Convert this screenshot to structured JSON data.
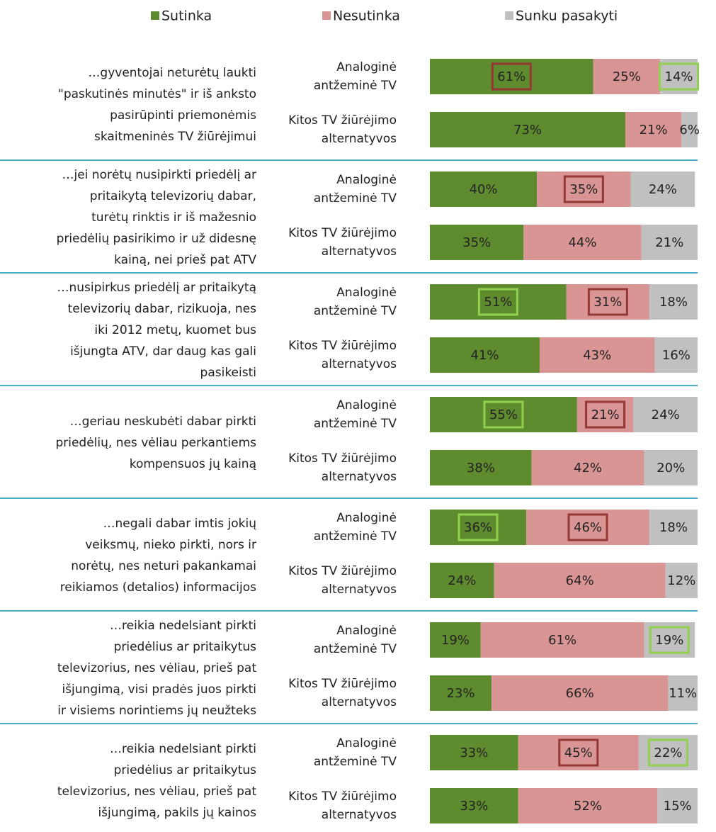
{
  "chart_data": {
    "type": "stacked-bar-horizontal",
    "groups": [
      [
        "…gyventojai neturėtų laukti",
        "\"paskutinės minutės\" ir iš anksto",
        "pasirūpinti priemonėmis",
        "skaitmeninės TV žiūrėjimui"
      ],
      [
        "…jei norėtų nusipirkti priedėlį ar",
        "pritaikytą televizorių dabar,",
        "turėtų rinktis ir iš mažesnio",
        "priedėlių pasirikimo ir už didesnę",
        "kainą, nei prieš pat ATV"
      ],
      [
        "…nusipirkus priedėlį ar pritaikytą",
        "televizorių dabar, rizikuoja, nes",
        "iki 2012 metų, kuomet bus",
        "išjungta ATV, dar daug kas gali",
        "pasikeisti"
      ],
      [
        "…geriau neskubėti dabar pirkti",
        "priedėlių, nes vėliau perkantiems",
        "kompensuos jų kainą"
      ],
      [
        "…negali dabar imtis jokių",
        "veiksmų, nieko pirkti, nors ir",
        "norėtų, nes neturi pakankamai",
        "reikiamos (detalios) informacijos"
      ],
      [
        "…reikia nedelsiant pirkti",
        "priedėlius ar pritaikytus",
        "televizorius, nes vėliau, prieš pat",
        "išjungimą, visi pradės juos pirkti",
        "ir visiems norintiems jų neužteks"
      ],
      [
        "…reikia nedelsiant pirkti",
        "priedėlius ar pritaikytus",
        "televizorius, nes vėliau, prieš pat",
        "išjungimą, pakils jų kainos"
      ]
    ],
    "categories": [
      [
        "Analoginė",
        "antžeminė TV"
      ],
      [
        "Kitos TV žiūrėjimo",
        "alternatyvos"
      ],
      [
        "Analoginė",
        "antžeminė TV"
      ],
      [
        "Kitos TV žiūrėjimo",
        "alternatyvos"
      ],
      [
        "Analoginė",
        "antžeminė TV"
      ],
      [
        "Kitos TV žiūrėjimo",
        "alternatyvos"
      ],
      [
        "Analoginė",
        "antžeminė TV"
      ],
      [
        "Kitos TV žiūrėjimo",
        "alternatyvos"
      ],
      [
        "Analoginė",
        "antžeminė TV"
      ],
      [
        "Kitos TV žiūrėjimo",
        "alternatyvos"
      ],
      [
        "Analoginė",
        "antžeminė TV"
      ],
      [
        "Kitos TV žiūrėjimo",
        "alternatyvos"
      ],
      [
        "Analoginė",
        "antžeminė TV"
      ],
      [
        "Kitos TV žiūrėjimo",
        "alternatyvos"
      ]
    ],
    "xlim": [
      0,
      100
    ],
    "series": [
      {
        "name": "Sutinka",
        "color": "#5f8b2f",
        "values": [
          61,
          73,
          40,
          35,
          51,
          41,
          55,
          38,
          36,
          24,
          19,
          23,
          33,
          33
        ],
        "value_labels": [
          "61%",
          "73%",
          "40%",
          "35%",
          "51%",
          "41%",
          "55%",
          "38%",
          "36%",
          "24%",
          "19%",
          "23%",
          "33%",
          "33%"
        ],
        "highlight": [
          "#953735",
          null,
          null,
          null,
          "#92d050",
          null,
          "#92d050",
          null,
          "#92d050",
          null,
          null,
          null,
          null,
          null
        ]
      },
      {
        "name": "Nesutinka",
        "color": "#d99594",
        "values": [
          25,
          21,
          35,
          44,
          31,
          43,
          21,
          42,
          46,
          64,
          61,
          66,
          45,
          52
        ],
        "value_labels": [
          "25%",
          "21%",
          "35%",
          "44%",
          "31%",
          "43%",
          "21%",
          "42%",
          "46%",
          "64%",
          "61%",
          "66%",
          "45%",
          "52%"
        ],
        "highlight": [
          null,
          null,
          "#953735",
          null,
          "#953735",
          null,
          "#953735",
          null,
          "#953735",
          null,
          null,
          null,
          "#953735",
          null
        ]
      },
      {
        "name": "Sunku pasakyti",
        "color": "#c0c0c0",
        "values": [
          14,
          6,
          24,
          21,
          18,
          16,
          24,
          20,
          18,
          12,
          19,
          11,
          22,
          15
        ],
        "value_labels": [
          "14%",
          "6%",
          "24%",
          "21%",
          "18%",
          "16%",
          "24%",
          "20%",
          "18%",
          "12%",
          "19%",
          "11%",
          "22%",
          "15%"
        ],
        "highlight": [
          "#92d050",
          null,
          null,
          null,
          null,
          null,
          null,
          null,
          null,
          null,
          "#92d050",
          null,
          "#92d050",
          null
        ]
      }
    ]
  }
}
